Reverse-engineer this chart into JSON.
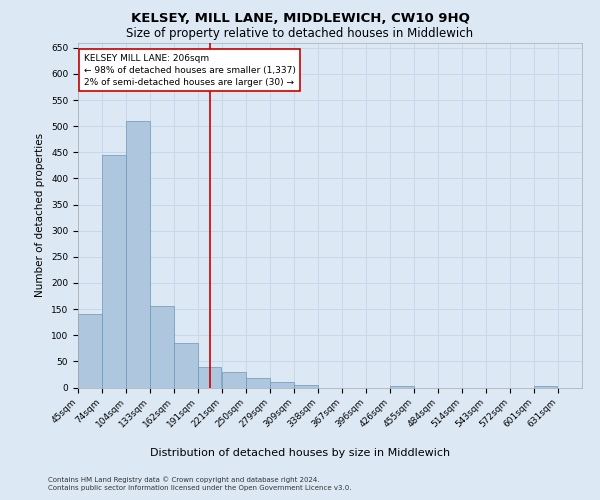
{
  "title": "KELSEY, MILL LANE, MIDDLEWICH, CW10 9HQ",
  "subtitle": "Size of property relative to detached houses in Middlewich",
  "xlabel": "Distribution of detached houses by size in Middlewich",
  "ylabel": "Number of detached properties",
  "footnote1": "Contains HM Land Registry data © Crown copyright and database right 2024.",
  "footnote2": "Contains public sector information licensed under the Open Government Licence v3.0.",
  "annotation_title": "KELSEY MILL LANE: 206sqm",
  "annotation_line1": "← 98% of detached houses are smaller (1,337)",
  "annotation_line2": "2% of semi-detached houses are larger (30) →",
  "bar_color": "#aec6de",
  "bar_edge_color": "#6699bb",
  "ref_line_color": "#cc0000",
  "ref_line_x": 206,
  "annotation_box_color": "#ffffff",
  "annotation_box_edge": "#cc0000",
  "background_color": "#dce9f5",
  "categories": [
    45,
    74,
    104,
    133,
    162,
    191,
    221,
    250,
    279,
    309,
    338,
    367,
    396,
    426,
    455,
    484,
    514,
    543,
    572,
    601,
    631
  ],
  "bin_width": 29,
  "values": [
    140,
    445,
    510,
    155,
    85,
    40,
    30,
    18,
    10,
    5,
    0,
    0,
    0,
    3,
    0,
    0,
    0,
    0,
    0,
    3,
    0
  ],
  "ylim": [
    0,
    660
  ],
  "yticks": [
    0,
    50,
    100,
    150,
    200,
    250,
    300,
    350,
    400,
    450,
    500,
    550,
    600,
    650
  ],
  "grid_color": "#c8d8ec",
  "title_fontsize": 9.5,
  "subtitle_fontsize": 8.5,
  "tick_fontsize": 6.5,
  "ylabel_fontsize": 7.5,
  "xlabel_fontsize": 8,
  "annotation_fontsize": 6.5,
  "footnote_fontsize": 5
}
